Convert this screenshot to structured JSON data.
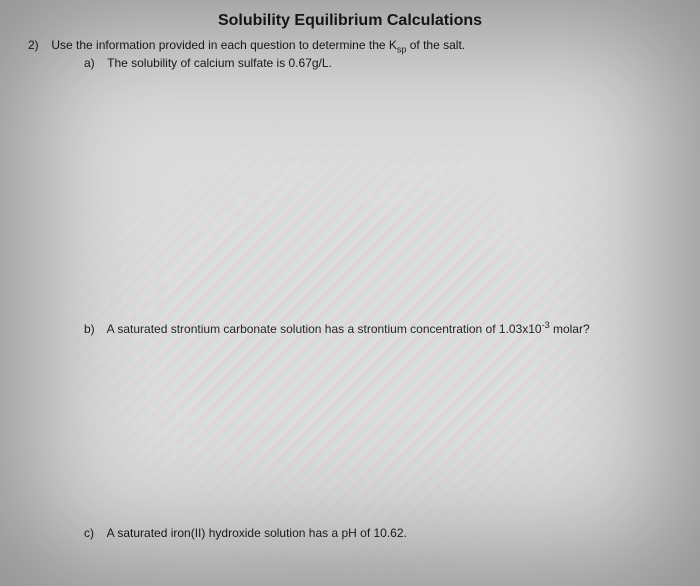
{
  "title": "Solubility Equilibrium Calculations",
  "question": {
    "number": "2)",
    "prompt_pre": "Use the information provided in each question to determine the K",
    "prompt_sub": "sp",
    "prompt_post": " of the salt."
  },
  "parts": {
    "a": {
      "letter": "a)",
      "text": "The solubility of calcium sulfate is 0.67g/L."
    },
    "b": {
      "letter": "b)",
      "text_pre": "A saturated strontium carbonate solution has a strontium concentration of 1.03x10",
      "text_sup": "-3",
      "text_post": " molar?"
    },
    "c": {
      "letter": "c)",
      "text": "A saturated iron(II) hydroxide solution has a pH of 10.62."
    }
  },
  "colors": {
    "background": "#dcdcdc",
    "text": "#1a1a1a"
  }
}
